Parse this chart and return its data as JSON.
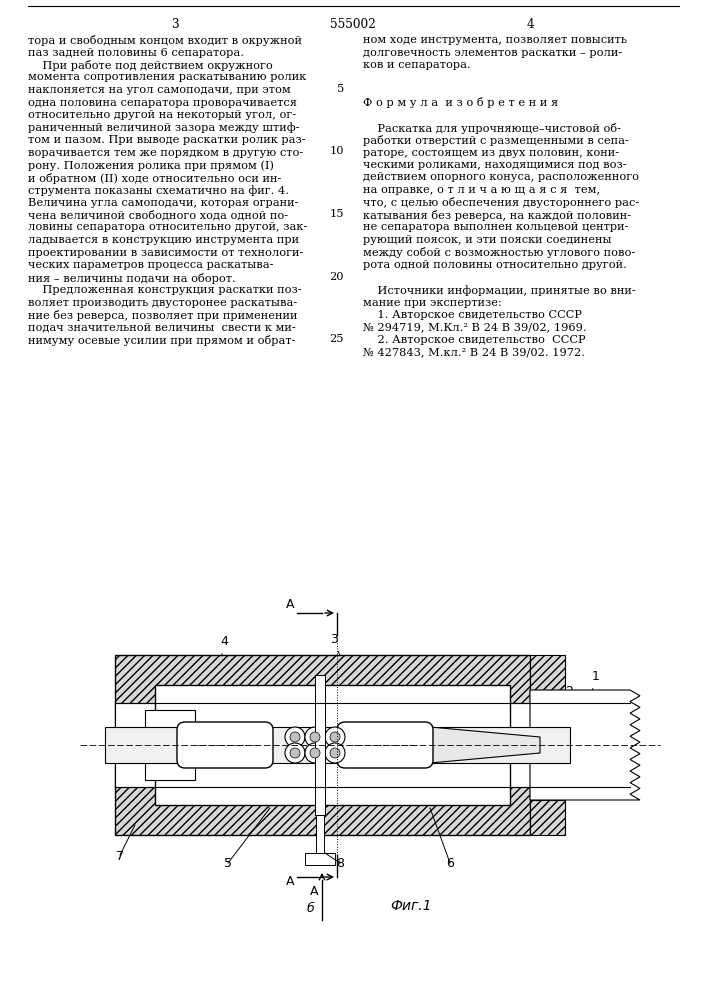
{
  "page_number_left": "3",
  "page_number_center": "555002",
  "page_number_right": "4",
  "left_column_text": [
    "тора и свободным концом входит в окружной",
    "паз задней половины 6 сепаратора.",
    "    При работе под действием окружного",
    "момента сопротивления раскатыванию ролик",
    "наклоняется на угол самоподачи, при этом",
    "одна половина сепаратора проворачивается",
    "относительно другой на некоторый угол, ог-",
    "раниченный величиной зазора между штиф-",
    "том и пазом. При выводе раскатки ролик раз-",
    "ворачивается тем же порядком в другую сто-",
    "рону. Положения ролика при прямом (I)",
    "и обратном (II) ходе относительно оси ин-",
    "струмента показаны схематично на фиг. 4.",
    "Величина угла самоподачи, которая ограни-",
    "чена величиной свободного хода одной по-",
    "ловины сепаратора относительно другой, зак-",
    "ладывается в конструкцию инструмента при",
    "проектировании в зависимости от технологи-",
    "ческих параметров процесса раскатыва-",
    "ния – величины подачи на оборот.",
    "    Предложенная конструкция раскатки поз-",
    "воляет производить двусторонее раскатыва-",
    "ние без реверса, позволяет при применении",
    "подач значительной величины  свести к ми-",
    "нимуму осевые усилии при прямом и обрат-"
  ],
  "right_column_text": [
    "ном ходе инструмента, позволяет повысить",
    "долговечность элементов раскатки – роли-",
    "ков и сепаратора.",
    "",
    "",
    "Ф о р м у л а  и з о б р е т е н и я",
    "",
    "    Раскатка для упрочняюще–чистовой об-",
    "работки отверстий с размещенными в сепа-",
    "раторе, состоящем из двух половин, кони-",
    "ческими роликами, находящимися под воз-",
    "действием опорного конуса, расположенного",
    "на оправке, о т л и ч а ю щ а я с я  тем,",
    "что, с целью обеспечения двустороннего рас-",
    "катывания без реверса, на каждой половин-",
    "не сепаратора выполнен кольцевой центри-",
    "рующий поясок, и эти пояски соединены",
    "между собой с возможностью углового пово-",
    "рота одной половины относительно другой.",
    "",
    "    Источники информации, принятые во вни-",
    "мание при экспертизе:",
    "    1. Авторское свидетельство СССР",
    "№ 294719, М.Кл.² В 24 В 39/02, 1969.",
    "    2. Авторское свидетельство  СССР",
    "№ 427843, М.кл.² В 24 В 39/02. 1972."
  ],
  "bg_color": "#ffffff",
  "text_color": "#000000",
  "font_size": 8.2,
  "fig_label": "Фиг.1"
}
